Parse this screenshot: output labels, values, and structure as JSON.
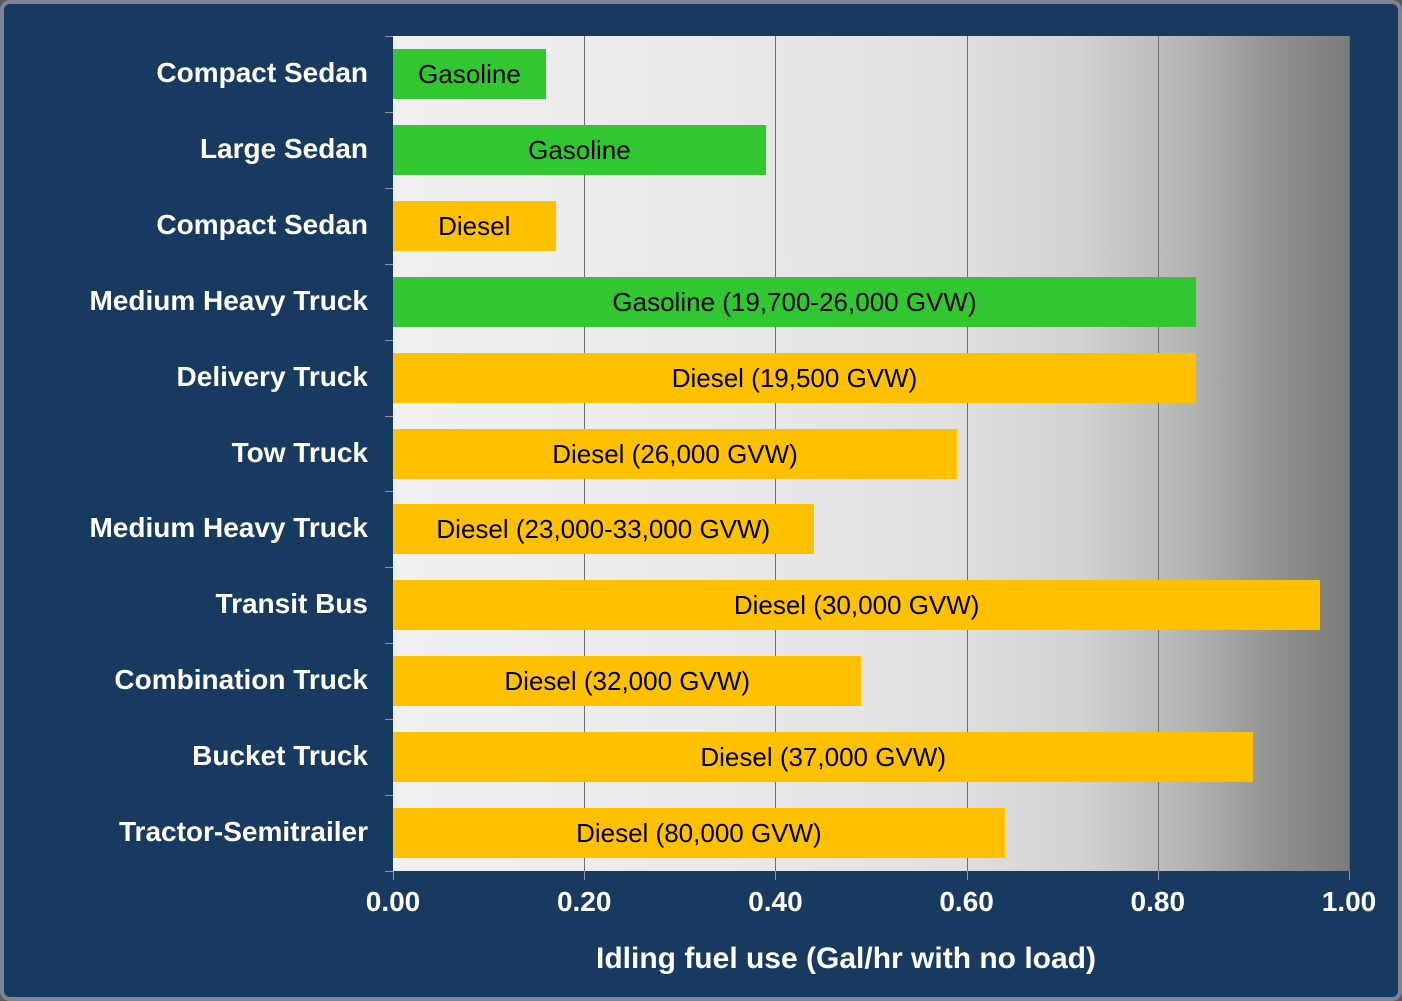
{
  "frame": {
    "background_color": "#193a60",
    "border_color": "#7e8492"
  },
  "chart_data": {
    "type": "bar",
    "orientation": "horizontal",
    "xlabel": "Idling fuel use (Gal/hr with no load)",
    "ylabel": "",
    "xlim": [
      0.0,
      1.0
    ],
    "x_ticks": [
      "0.00",
      "0.20",
      "0.40",
      "0.60",
      "0.80",
      "1.00"
    ],
    "x_tick_values": [
      0.0,
      0.2,
      0.4,
      0.6,
      0.8,
      1.0
    ],
    "grid": "vertical gridlines every 0.20",
    "legend_position": "none",
    "colors": {
      "gasoline": "#32c732",
      "diesel": "#ffc000"
    },
    "rows": [
      {
        "category": "Compact Sedan",
        "bar_label": "Gasoline",
        "fuel": "gasoline",
        "value": 0.16
      },
      {
        "category": "Large Sedan",
        "bar_label": "Gasoline",
        "fuel": "gasoline",
        "value": 0.39
      },
      {
        "category": "Compact Sedan",
        "bar_label": "Diesel",
        "fuel": "diesel",
        "value": 0.17
      },
      {
        "category": "Medium Heavy Truck",
        "bar_label": "Gasoline (19,700-26,000 GVW)",
        "fuel": "gasoline",
        "value": 0.84
      },
      {
        "category": "Delivery Truck",
        "bar_label": "Diesel (19,500 GVW)",
        "fuel": "diesel",
        "value": 0.84
      },
      {
        "category": "Tow Truck",
        "bar_label": "Diesel (26,000 GVW)",
        "fuel": "diesel",
        "value": 0.59
      },
      {
        "category": "Medium Heavy Truck",
        "bar_label": "Diesel (23,000-33,000 GVW)",
        "fuel": "diesel",
        "value": 0.44
      },
      {
        "category": "Transit Bus",
        "bar_label": "Diesel (30,000 GVW)",
        "fuel": "diesel",
        "value": 0.97
      },
      {
        "category": "Combination Truck",
        "bar_label": "Diesel (32,000 GVW)",
        "fuel": "diesel",
        "value": 0.49
      },
      {
        "category": "Bucket Truck",
        "bar_label": "Diesel (37,000 GVW)",
        "fuel": "diesel",
        "value": 0.9
      },
      {
        "category": "Tractor-Semitrailer",
        "bar_label": "Diesel (80,000 GVW)",
        "fuel": "diesel",
        "value": 0.64
      }
    ]
  }
}
